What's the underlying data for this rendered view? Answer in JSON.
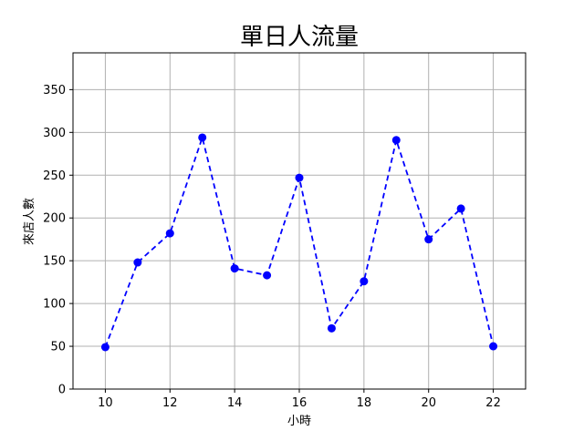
{
  "chart_data": {
    "type": "line",
    "title": "單日人流量",
    "xlabel": "小時",
    "ylabel": "來店人數",
    "x": [
      10,
      11,
      12,
      13,
      14,
      15,
      16,
      17,
      18,
      19,
      20,
      21,
      22
    ],
    "series": [
      {
        "values": [
          49,
          148,
          182,
          294,
          141,
          133,
          247,
          71,
          126,
          291,
          175,
          211,
          50
        ],
        "color": "#0000ff",
        "line_style": "dashed",
        "marker": "circle"
      }
    ],
    "xlim": [
      9,
      23
    ],
    "ylim": [
      0,
      393
    ],
    "xticks": [
      10,
      12,
      14,
      16,
      18,
      20,
      22
    ],
    "yticks": [
      0,
      50,
      100,
      150,
      200,
      250,
      300,
      350
    ],
    "grid": true
  }
}
